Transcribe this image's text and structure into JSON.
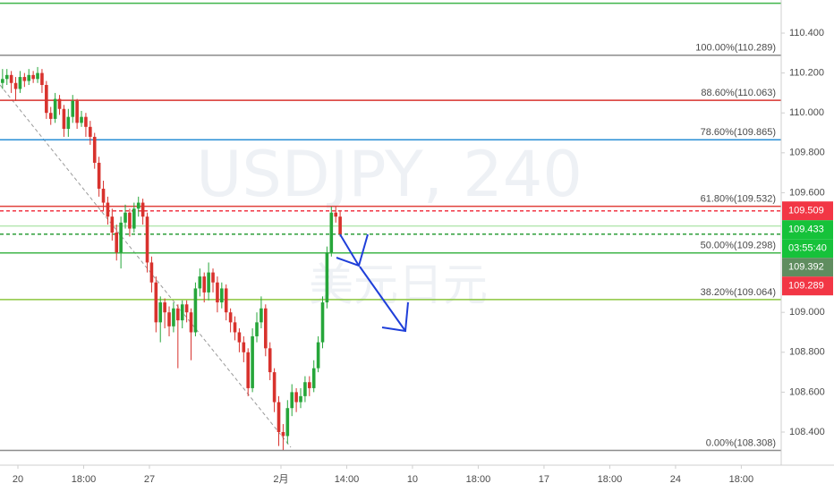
{
  "chart_data": {
    "type": "candlestick",
    "watermark": {
      "title": "USDJPY, 240",
      "subtitle": "美元日元"
    },
    "up_color": "#26a63a",
    "down_color": "#d8322d",
    "open": [
      110.15,
      110.17,
      110.19,
      110.15,
      110.12,
      110.18,
      110.16,
      110.19,
      110.17,
      110.2,
      110.14,
      110.0,
      109.97,
      110.07,
      110.02,
      109.92,
      109.98,
      110.06,
      109.95,
      109.98,
      109.93,
      109.88,
      109.75,
      109.62,
      109.55,
      109.48,
      109.4,
      109.3,
      109.45,
      109.5,
      109.42,
      109.52,
      109.55,
      109.48,
      109.25,
      109.15,
      108.95,
      109.05,
      109.0,
      108.93,
      109.02,
      108.96,
      109.04,
      109.0,
      108.9,
      109.12,
      109.18,
      109.1,
      109.2,
      109.15,
      109.05,
      109.12,
      109.0,
      108.95,
      108.9,
      108.85,
      108.8,
      108.62,
      108.88,
      108.95,
      109.02,
      108.82,
      108.7,
      108.55,
      108.4,
      108.38,
      108.52,
      108.6,
      108.55,
      108.58,
      108.65,
      108.62,
      108.72,
      108.85,
      109.05,
      109.3,
      109.5,
      109.48
    ],
    "high": [
      110.22,
      110.22,
      110.21,
      110.18,
      110.21,
      110.2,
      110.22,
      110.21,
      110.23,
      110.22,
      110.16,
      110.03,
      110.1,
      110.09,
      110.04,
      110.02,
      110.09,
      110.07,
      110.01,
      110.0,
      109.96,
      109.9,
      109.78,
      109.66,
      109.58,
      109.52,
      109.44,
      109.48,
      109.54,
      109.52,
      109.55,
      109.58,
      109.57,
      109.5,
      109.28,
      109.18,
      109.08,
      109.07,
      109.03,
      109.05,
      109.04,
      109.06,
      109.06,
      109.02,
      109.15,
      109.22,
      109.2,
      109.25,
      109.22,
      109.18,
      109.15,
      109.14,
      109.02,
      108.98,
      108.92,
      108.88,
      108.82,
      108.92,
      109.0,
      109.08,
      109.04,
      108.85,
      108.72,
      108.58,
      108.44,
      108.56,
      108.64,
      108.62,
      108.62,
      108.68,
      108.68,
      108.76,
      108.88,
      109.08,
      109.33,
      109.53,
      109.53,
      109.51
    ],
    "low": [
      110.12,
      110.14,
      110.1,
      110.06,
      110.1,
      110.13,
      110.14,
      110.15,
      110.15,
      110.1,
      109.97,
      109.94,
      109.95,
      109.99,
      109.88,
      109.88,
      109.95,
      109.92,
      109.93,
      109.88,
      109.84,
      109.72,
      109.58,
      109.51,
      109.44,
      109.36,
      109.26,
      109.22,
      109.42,
      109.38,
      109.4,
      109.48,
      109.44,
      109.2,
      109.1,
      108.9,
      108.85,
      108.92,
      108.88,
      108.9,
      108.72,
      108.92,
      108.95,
      108.76,
      108.88,
      109.08,
      109.05,
      109.06,
      109.1,
      109.0,
      109.02,
      108.96,
      108.9,
      108.86,
      108.8,
      108.75,
      108.58,
      108.6,
      108.85,
      108.92,
      108.78,
      108.66,
      108.5,
      108.33,
      108.31,
      108.34,
      108.48,
      108.5,
      108.52,
      108.55,
      108.58,
      108.6,
      108.7,
      108.82,
      109.02,
      109.28,
      109.45,
      109.38
    ],
    "close": [
      110.17,
      110.19,
      110.15,
      110.12,
      110.18,
      110.16,
      110.19,
      110.17,
      110.2,
      110.14,
      110.0,
      109.97,
      110.07,
      110.02,
      109.92,
      109.98,
      110.06,
      109.95,
      109.98,
      109.93,
      109.88,
      109.75,
      109.62,
      109.55,
      109.48,
      109.4,
      109.3,
      109.45,
      109.5,
      109.42,
      109.52,
      109.55,
      109.48,
      109.25,
      109.15,
      108.95,
      109.05,
      109.0,
      108.93,
      109.02,
      108.96,
      109.04,
      109.0,
      108.9,
      109.12,
      109.18,
      109.1,
      109.2,
      109.15,
      109.05,
      109.12,
      109.0,
      108.95,
      108.9,
      108.85,
      108.8,
      108.62,
      108.88,
      108.95,
      109.02,
      108.82,
      108.7,
      108.55,
      108.4,
      108.38,
      108.52,
      108.6,
      108.55,
      108.58,
      108.65,
      108.62,
      108.72,
      108.85,
      109.05,
      109.3,
      109.5,
      109.48,
      109.392
    ],
    "ylim": [
      108.234,
      110.566
    ],
    "yticks": [
      {
        "value": 110.4,
        "label": "110.400"
      },
      {
        "value": 110.2,
        "label": "110.200"
      },
      {
        "value": 110.0,
        "label": "110.000"
      },
      {
        "value": 109.8,
        "label": "109.800"
      },
      {
        "value": 109.6,
        "label": "109.600"
      },
      {
        "value": 109.0,
        "label": "109.000"
      },
      {
        "value": 108.8,
        "label": "108.800"
      },
      {
        "value": 108.6,
        "label": "108.600"
      },
      {
        "value": 108.4,
        "label": "108.400"
      }
    ],
    "xlim": [
      -0.58,
      177.6
    ],
    "xticks": [
      {
        "value": 3.5,
        "label": "20"
      },
      {
        "value": 18.5,
        "label": "18:00"
      },
      {
        "value": 33.5,
        "label": "27"
      },
      {
        "value": 63.5,
        "label": "2月"
      },
      {
        "value": 78.5,
        "label": "14:00"
      },
      {
        "value": 93.5,
        "label": "10"
      },
      {
        "value": 108.5,
        "label": "18:00"
      },
      {
        "value": 123.5,
        "label": "17"
      },
      {
        "value": 138.5,
        "label": "18:00"
      },
      {
        "value": 153.5,
        "label": "24"
      },
      {
        "value": 168.5,
        "label": "18:00"
      }
    ],
    "fib_levels": [
      {
        "value": 110.55,
        "color": "#3fb54a"
      },
      {
        "value": 110.289,
        "label": "100.00%(110.289)",
        "color": "#8c8c8c"
      },
      {
        "value": 110.063,
        "label": "88.60%(110.063)",
        "color": "#d8322d"
      },
      {
        "value": 109.865,
        "label": "78.60%(109.865)",
        "color": "#2a8fd6"
      },
      {
        "value": 109.532,
        "label": "61.80%(109.532)",
        "color": "#e0403b"
      },
      {
        "value": 109.298,
        "label": "50.00%(109.298)",
        "color": "#3fb54a"
      },
      {
        "value": 109.064,
        "label": "38.20%(109.064)",
        "color": "#8cc63f"
      },
      {
        "value": 108.308,
        "label": "0.00%(108.308)",
        "color": "#8c8c8c"
      }
    ],
    "price_lines": [
      {
        "value": 109.509,
        "color": "#f23645",
        "dashed": true
      },
      {
        "value": 109.433,
        "color": "#b5e6b0",
        "dashed": false
      },
      {
        "value": 109.392,
        "color": "#2e9e3a",
        "dashed": true
      }
    ],
    "badges": [
      {
        "value": 109.509,
        "label": "109.509",
        "color": "#f23645"
      },
      {
        "value": 109.433,
        "label": "109.433",
        "color": "#16c23a"
      },
      {
        "label": "03:55:40",
        "color": "#16c23a"
      },
      {
        "value": 109.392,
        "label": "109.392",
        "color": "#5f8d5f"
      },
      {
        "value": 109.289,
        "label": "109.289",
        "color": "#f23645"
      }
    ]
  }
}
